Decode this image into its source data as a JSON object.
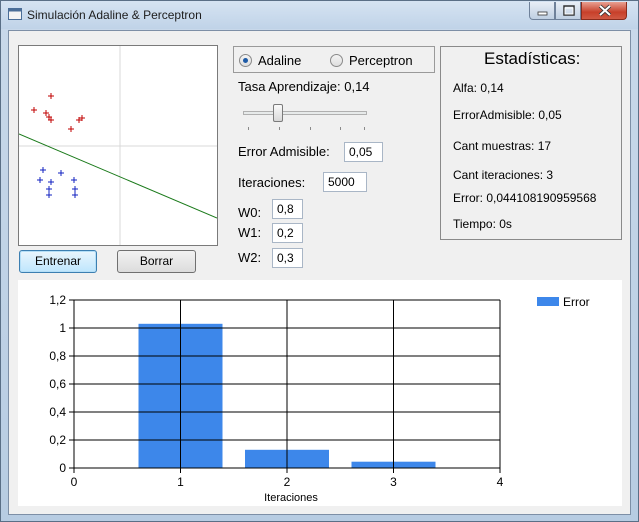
{
  "window": {
    "title": "Simulación Adaline & Perceptron"
  },
  "plot": {
    "red_points": [
      [
        15,
        64
      ],
      [
        27,
        67
      ],
      [
        32,
        50
      ],
      [
        30,
        71
      ],
      [
        32,
        74
      ],
      [
        52,
        83
      ],
      [
        63,
        72
      ],
      [
        60,
        74
      ]
    ],
    "blue_points": [
      [
        24,
        124
      ],
      [
        21,
        134
      ],
      [
        32,
        136
      ],
      [
        42,
        127
      ],
      [
        30,
        143
      ],
      [
        30,
        149
      ],
      [
        55,
        134
      ],
      [
        56,
        143
      ],
      [
        56,
        149
      ]
    ],
    "line_color": "#1a7a1a",
    "red_color": "#c00000",
    "blue_color": "#1020c0"
  },
  "buttons": {
    "train_label": "Entrenar",
    "clear_label": "Borrar"
  },
  "mode": {
    "adaline_label": "Adaline",
    "perceptron_label": "Perceptron",
    "selected": "Adaline"
  },
  "params": {
    "rate_label": "Tasa Aprendizaje: 0,14",
    "error_label": "Error Admisible:",
    "error_value": "0,05",
    "iter_label": "Iteraciones:",
    "iter_value": "5000",
    "w0_label": "W0:",
    "w0_value": "0,8",
    "w1_label": "W1:",
    "w1_value": "0,2",
    "w2_label": "W2:",
    "w2_value": "0,3",
    "rate_slider_fraction": 0.28
  },
  "stats": {
    "title": "Estadísticas:",
    "alfa": "Alfa: 0,14",
    "error_admisible": "ErrorAdmisible: 0,05",
    "cant_muestras": "Cant muestras: 17",
    "cant_iteraciones": "Cant iteraciones: 3",
    "error": "Error: 0,044108190959568",
    "tiempo": "Tiempo: 0s"
  },
  "chart_data": {
    "type": "bar",
    "x": [
      1,
      2,
      3
    ],
    "series": [
      {
        "name": "Error",
        "values": [
          1.03,
          0.13,
          0.045
        ]
      }
    ],
    "xlabel": "Iteraciones",
    "ylabel": "",
    "xlim": [
      0,
      4
    ],
    "ylim": [
      0,
      1.2
    ],
    "x_ticks": [
      "0",
      "1",
      "2",
      "3",
      "4"
    ],
    "y_ticks": [
      "0",
      "0,2",
      "0,4",
      "0,6",
      "0,8",
      "1",
      "1,2"
    ],
    "grid": true,
    "legend_position": "top-right",
    "bar_color": "#3d87ea"
  }
}
